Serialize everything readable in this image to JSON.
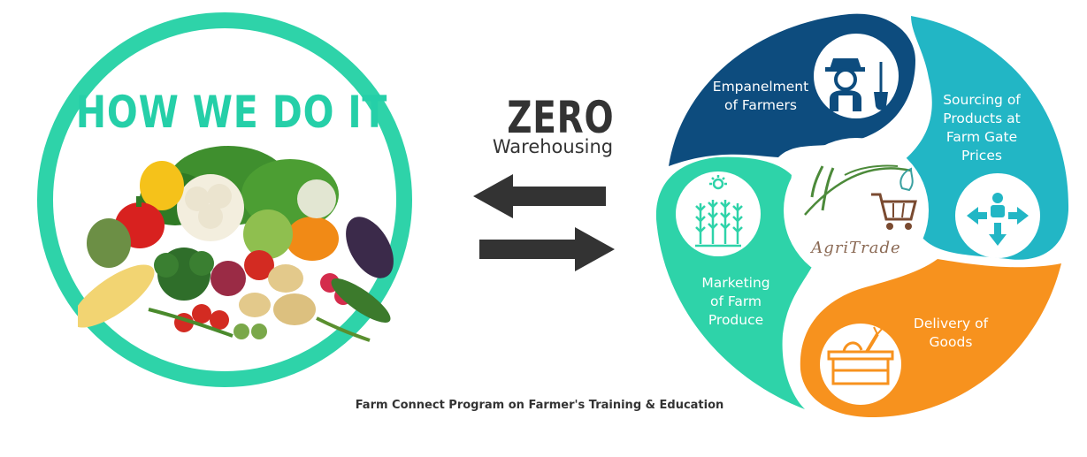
{
  "left": {
    "title": "HOW WE DO IT",
    "accent": "#2ed3a9"
  },
  "middle": {
    "zero": "ZERO",
    "warehousing": "Warehousing",
    "arrow_color": "#333333"
  },
  "cycle": {
    "center_logo_text": "AgriTrade",
    "segments": [
      {
        "label": "Empanelment of Farmers",
        "lines": [
          "Empanelment",
          "of Farmers"
        ],
        "color": "#0d4c7e",
        "icon": "farmer-icon"
      },
      {
        "label": "Sourcing of Products at Farm Gate Prices",
        "lines": [
          "Sourcing of",
          "Products at",
          "Farm Gate",
          "Prices"
        ],
        "color": "#22b6c5",
        "icon": "distribution-arrows-icon"
      },
      {
        "label": "Delivery of Goods",
        "lines": [
          "Delivery of",
          "Goods"
        ],
        "color": "#f7921e",
        "icon": "crate-icon"
      },
      {
        "label": "Marketing of Farm Produce",
        "lines": [
          "Marketing",
          "of Farm",
          "Produce"
        ],
        "color": "#2ed3a9",
        "icon": "crops-icon"
      }
    ]
  },
  "caption": "Farm Connect Program on Farmer's Training & Education"
}
